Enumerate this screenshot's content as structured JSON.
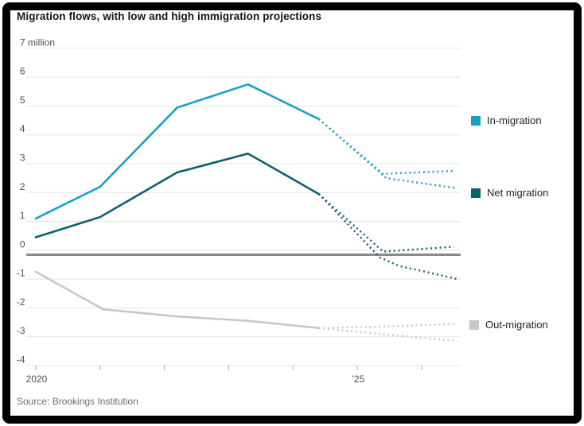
{
  "header": {
    "title": "Migration flows, with low and high immigration projections"
  },
  "chart_data": {
    "type": "line",
    "title": "Migration flows, with low and high immigration projections",
    "unit_label": "7 million",
    "ylim": [
      -4,
      7
    ],
    "xlim": [
      2020,
      2026.6
    ],
    "grid": "horizontal",
    "zero_baseline": true,
    "y_tick_values": [
      7,
      6,
      5,
      4,
      3,
      2,
      1,
      0,
      -1,
      -2,
      -3,
      -4
    ],
    "y_tick_labels": [
      "7 million",
      "6",
      "5",
      "4",
      "3",
      "2",
      "1",
      "0",
      "-1",
      "-2",
      "-3",
      "-4"
    ],
    "x_tick_years": [
      2020,
      2021,
      2022,
      2023,
      2024,
      2025,
      2026
    ],
    "x_tick_labels": {
      "2020": "2020",
      "2025": "’25"
    },
    "legend_position": "right",
    "series": [
      {
        "name": "In-migration",
        "color": "#17a2c4",
        "solid": [
          [
            2020,
            1.1
          ],
          [
            2021,
            2.2
          ],
          [
            2022.2,
            4.95
          ],
          [
            2023.3,
            5.75
          ],
          [
            2024.4,
            4.55
          ]
        ],
        "projection_high": [
          [
            2024.4,
            4.55
          ],
          [
            2025.4,
            2.65
          ],
          [
            2026.5,
            2.75
          ]
        ],
        "projection_low": [
          [
            2024.4,
            4.55
          ],
          [
            2025.45,
            2.5
          ],
          [
            2026.55,
            2.15
          ]
        ]
      },
      {
        "name": "Net migration",
        "color": "#0d6170",
        "solid": [
          [
            2020,
            0.45
          ],
          [
            2021,
            1.15
          ],
          [
            2022.2,
            2.7
          ],
          [
            2023.3,
            3.35
          ],
          [
            2024.4,
            1.95
          ]
        ],
        "projection_high": [
          [
            2024.4,
            1.95
          ],
          [
            2025.4,
            -0.05
          ],
          [
            2026.5,
            0.12
          ]
        ],
        "projection_low": [
          [
            2024.4,
            1.95
          ],
          [
            2025.35,
            -0.25
          ],
          [
            2025.65,
            -0.55
          ],
          [
            2026.0,
            -0.72
          ],
          [
            2026.55,
            -1.0
          ]
        ]
      },
      {
        "name": "Out-migration",
        "color": "#c7c7c7",
        "solid": [
          [
            2020,
            -0.75
          ],
          [
            2021.05,
            -2.05
          ],
          [
            2022.2,
            -2.3
          ],
          [
            2023.3,
            -2.45
          ],
          [
            2024.4,
            -2.7
          ]
        ],
        "projection_high": [
          [
            2024.4,
            -2.7
          ],
          [
            2025.4,
            -2.65
          ],
          [
            2026.5,
            -2.56
          ]
        ],
        "projection_low": [
          [
            2024.4,
            -2.7
          ],
          [
            2025.4,
            -2.92
          ],
          [
            2026.55,
            -3.15
          ]
        ]
      }
    ]
  },
  "source": {
    "text": "Source: Brookings Institution"
  }
}
